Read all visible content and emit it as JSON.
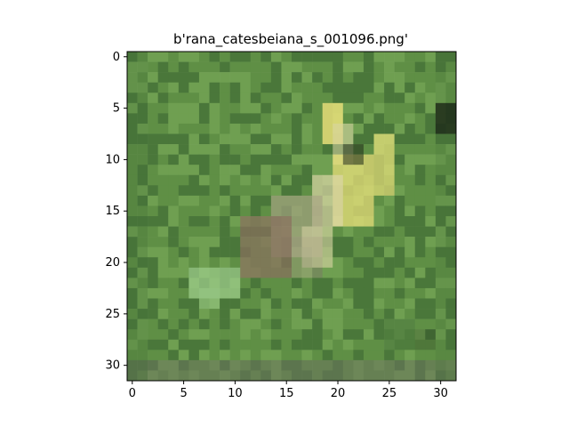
{
  "figure": {
    "title": "b'rana_catesbeiana_s_001096.png'",
    "background": "#ffffff"
  },
  "image": {
    "kind": "32x32 pixelated photo (bullfrog on green grass)",
    "grid": [
      32,
      32
    ],
    "palette": {
      "grass": "#5f8f45",
      "grass_dark": "#3f6a34",
      "grass_light": "#78a858",
      "frog_yellow": "#e8e07a",
      "frog_pale": "#dbd6a6",
      "frog_brown": "#8a6f5e",
      "frog_mid": "#a8a384",
      "frog_green_light": "#9bcb88",
      "shadow": "#1f2d1a",
      "mud": "#6b745e"
    }
  },
  "axes": {
    "x_ticks": [
      "0",
      "5",
      "10",
      "15",
      "20",
      "25",
      "30"
    ],
    "y_ticks": [
      "0",
      "5",
      "10",
      "15",
      "20",
      "25",
      "30"
    ],
    "xlim": [
      -0.5,
      31.5
    ],
    "ylim": [
      31.5,
      -0.5
    ],
    "grid": false
  }
}
